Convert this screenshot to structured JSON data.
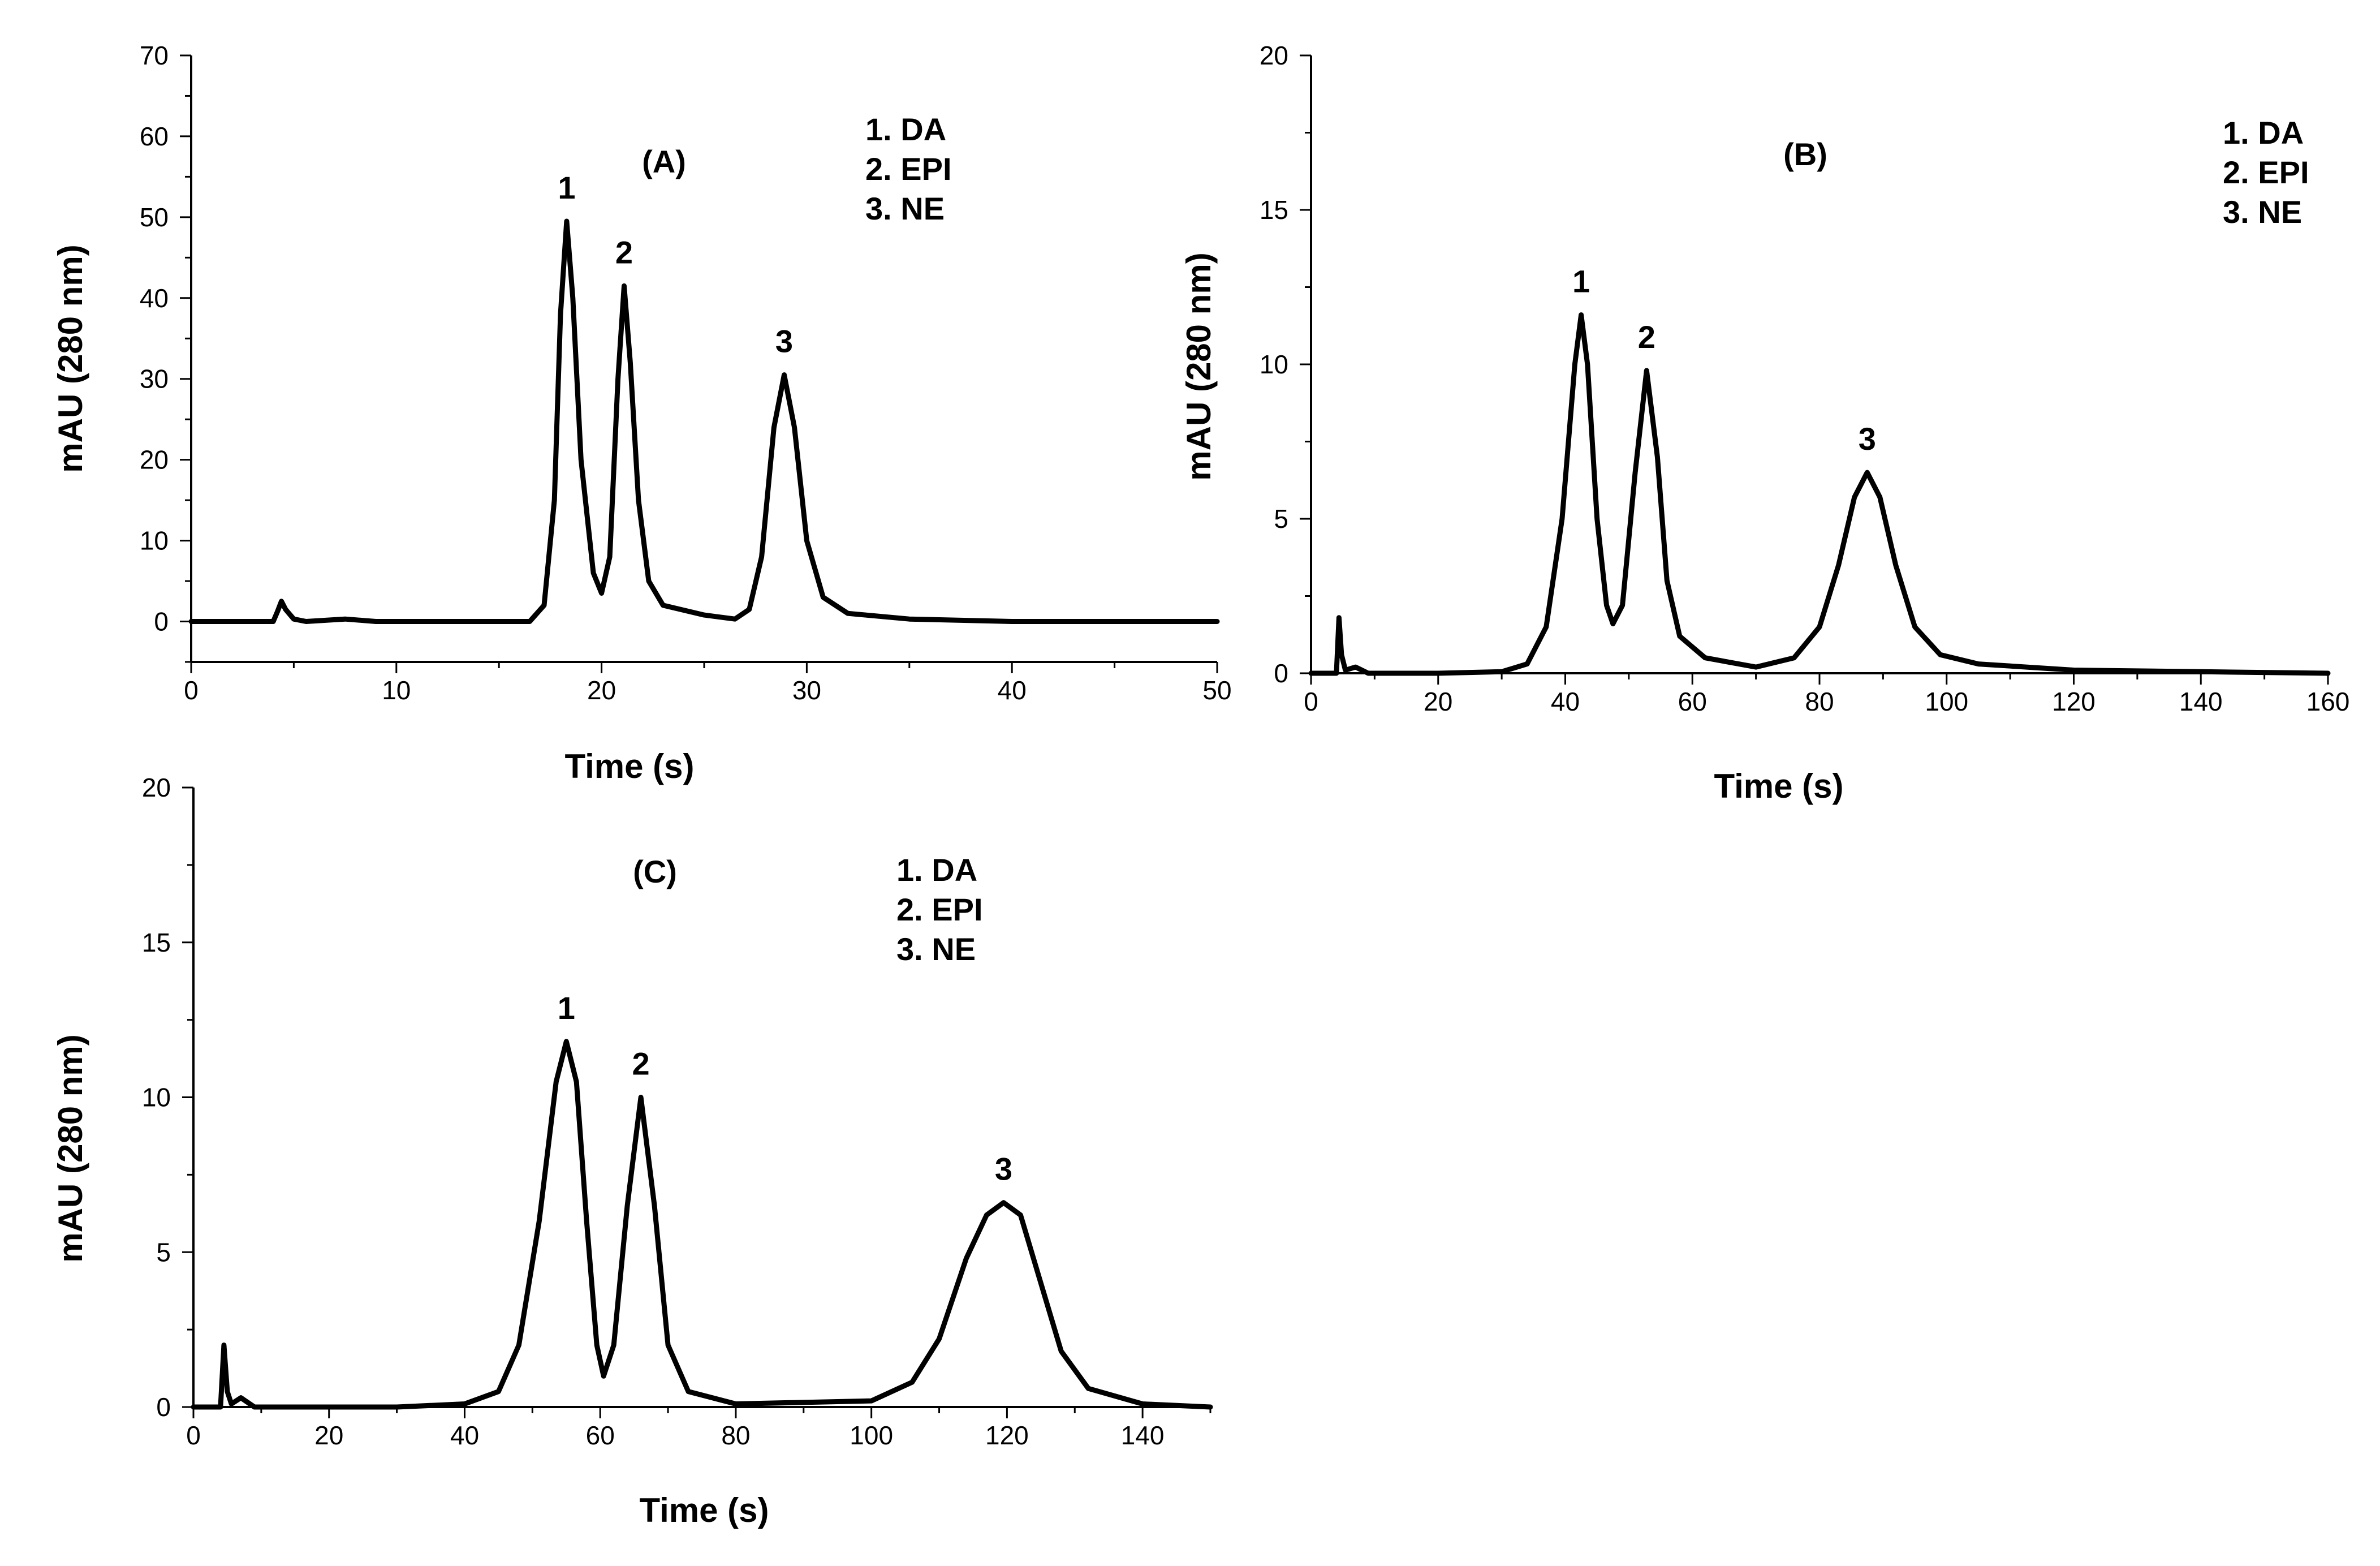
{
  "chart_data": [
    {
      "id": "A",
      "type": "line",
      "panel_label": "(A)",
      "xlabel": "Time (s)",
      "ylabel": "mAU (280 nm)",
      "xlim": [
        0,
        50
      ],
      "ylim": [
        -5,
        70
      ],
      "xticks": [
        0,
        10,
        20,
        30,
        40,
        50
      ],
      "yticks": [
        0,
        10,
        20,
        30,
        40,
        50,
        60,
        70
      ],
      "legend": [
        "1. DA",
        "2. EPI",
        "3. NE"
      ],
      "legend_position": "top-right",
      "peaks": [
        {
          "label": "1",
          "x": 18.3,
          "y": 49.5
        },
        {
          "label": "2",
          "x": 21.1,
          "y": 41.5
        },
        {
          "label": "3",
          "x": 28.9,
          "y": 30.5
        }
      ],
      "series": [
        {
          "name": "electropherogram",
          "points": [
            [
              0,
              0
            ],
            [
              4.0,
              0
            ],
            [
              4.2,
              1.2
            ],
            [
              4.4,
              2.5
            ],
            [
              4.6,
              1.5
            ],
            [
              5.0,
              0.3
            ],
            [
              5.6,
              0
            ],
            [
              7.5,
              0.3
            ],
            [
              9,
              0
            ],
            [
              12,
              0
            ],
            [
              16.5,
              0
            ],
            [
              17.2,
              2
            ],
            [
              17.7,
              15
            ],
            [
              18.0,
              38
            ],
            [
              18.3,
              49.5
            ],
            [
              18.6,
              40
            ],
            [
              19.0,
              20
            ],
            [
              19.6,
              6
            ],
            [
              20.0,
              3.5
            ],
            [
              20.4,
              8
            ],
            [
              20.8,
              30
            ],
            [
              21.1,
              41.5
            ],
            [
              21.4,
              32
            ],
            [
              21.8,
              15
            ],
            [
              22.3,
              5
            ],
            [
              23,
              2
            ],
            [
              25,
              0.8
            ],
            [
              26.5,
              0.3
            ],
            [
              27.2,
              1.5
            ],
            [
              27.8,
              8
            ],
            [
              28.4,
              24
            ],
            [
              28.9,
              30.5
            ],
            [
              29.4,
              24
            ],
            [
              30.0,
              10
            ],
            [
              30.8,
              3
            ],
            [
              32,
              1
            ],
            [
              35,
              0.3
            ],
            [
              40,
              0
            ],
            [
              50,
              0
            ]
          ]
        }
      ]
    },
    {
      "id": "B",
      "type": "line",
      "panel_label": "(B)",
      "xlabel": "Time (s)",
      "ylabel": "mAU (280 nm)",
      "xlim": [
        0,
        160
      ],
      "ylim": [
        0,
        20
      ],
      "xticks": [
        0,
        20,
        40,
        60,
        80,
        100,
        120,
        140,
        160
      ],
      "yticks": [
        0,
        5,
        10,
        15,
        20
      ],
      "legend": [
        "1. DA",
        "2. EPI",
        "3. NE"
      ],
      "legend_position": "top-right",
      "peaks": [
        {
          "label": "1",
          "x": 42.5,
          "y": 11.6
        },
        {
          "label": "2",
          "x": 52.8,
          "y": 9.8
        },
        {
          "label": "3",
          "x": 87.5,
          "y": 6.5
        }
      ],
      "series": [
        {
          "name": "electropherogram",
          "points": [
            [
              0,
              0
            ],
            [
              4.0,
              0
            ],
            [
              4.4,
              1.8
            ],
            [
              4.8,
              0.6
            ],
            [
              5.4,
              0.1
            ],
            [
              7,
              0.2
            ],
            [
              9,
              0
            ],
            [
              20,
              0
            ],
            [
              30,
              0.05
            ],
            [
              34,
              0.3
            ],
            [
              37,
              1.5
            ],
            [
              39.5,
              5
            ],
            [
              41.5,
              10
            ],
            [
              42.5,
              11.6
            ],
            [
              43.5,
              10
            ],
            [
              45,
              5
            ],
            [
              46.5,
              2.2
            ],
            [
              47.5,
              1.6
            ],
            [
              49,
              2.2
            ],
            [
              51,
              6.5
            ],
            [
              52.8,
              9.8
            ],
            [
              54.5,
              7
            ],
            [
              56,
              3
            ],
            [
              58,
              1.2
            ],
            [
              62,
              0.5
            ],
            [
              70,
              0.2
            ],
            [
              76,
              0.5
            ],
            [
              80,
              1.5
            ],
            [
              83,
              3.5
            ],
            [
              85.5,
              5.7
            ],
            [
              87.5,
              6.5
            ],
            [
              89.5,
              5.7
            ],
            [
              92,
              3.5
            ],
            [
              95,
              1.5
            ],
            [
              99,
              0.6
            ],
            [
              105,
              0.3
            ],
            [
              120,
              0.1
            ],
            [
              140,
              0.05
            ],
            [
              160,
              0
            ]
          ]
        }
      ]
    },
    {
      "id": "C",
      "type": "line",
      "panel_label": "(C)",
      "xlabel": "Time (s)",
      "ylabel": "mAU (280 nm)",
      "xlim": [
        0,
        150
      ],
      "ylim": [
        0,
        20
      ],
      "xticks": [
        0,
        20,
        40,
        60,
        80,
        100,
        120,
        140
      ],
      "yticks": [
        0,
        5,
        10,
        15,
        20
      ],
      "legend": [
        "1. DA",
        "2. EPI",
        "3. NE"
      ],
      "legend_position": "top-right",
      "peaks": [
        {
          "label": "1",
          "x": 55.0,
          "y": 11.8
        },
        {
          "label": "2",
          "x": 66.0,
          "y": 10.0
        },
        {
          "label": "3",
          "x": 119.5,
          "y": 6.6
        }
      ],
      "series": [
        {
          "name": "electropherogram",
          "points": [
            [
              0,
              0
            ],
            [
              4.0,
              0
            ],
            [
              4.5,
              2.0
            ],
            [
              5.0,
              0.5
            ],
            [
              5.6,
              0.1
            ],
            [
              7,
              0.3
            ],
            [
              9,
              0
            ],
            [
              30,
              0
            ],
            [
              40,
              0.1
            ],
            [
              45,
              0.5
            ],
            [
              48,
              2
            ],
            [
              51,
              6
            ],
            [
              53.5,
              10.5
            ],
            [
              55,
              11.8
            ],
            [
              56.5,
              10.5
            ],
            [
              58,
              6
            ],
            [
              59.5,
              2
            ],
            [
              60.5,
              1
            ],
            [
              62,
              2
            ],
            [
              64,
              6.5
            ],
            [
              66,
              10
            ],
            [
              68,
              6.5
            ],
            [
              70,
              2
            ],
            [
              73,
              0.5
            ],
            [
              80,
              0.1
            ],
            [
              100,
              0.2
            ],
            [
              106,
              0.8
            ],
            [
              110,
              2.2
            ],
            [
              114,
              4.8
            ],
            [
              117,
              6.2
            ],
            [
              119.5,
              6.6
            ],
            [
              122,
              6.2
            ],
            [
              125,
              4
            ],
            [
              128,
              1.8
            ],
            [
              132,
              0.6
            ],
            [
              140,
              0.1
            ],
            [
              150,
              0
            ]
          ]
        }
      ]
    }
  ]
}
